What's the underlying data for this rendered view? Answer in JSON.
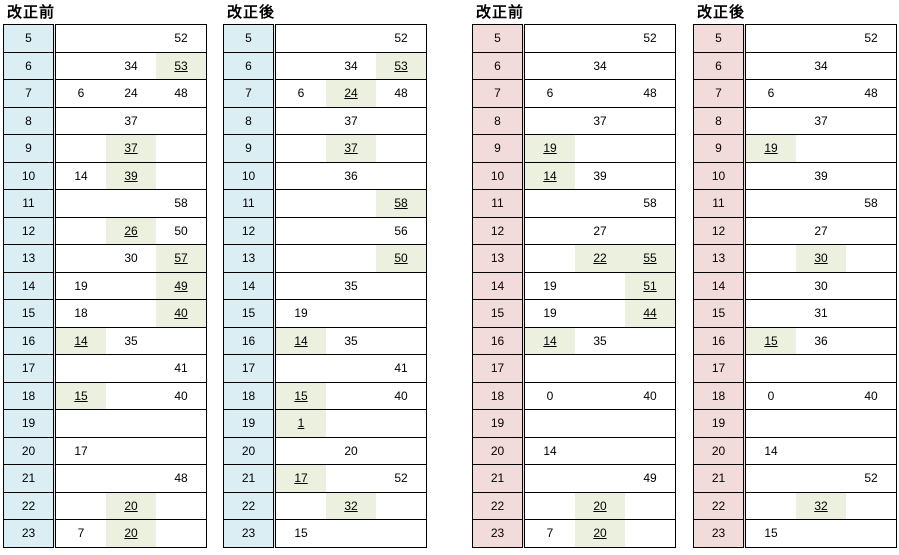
{
  "tables": [
    {
      "title": "改正前",
      "colors": {
        "hour_bg": "#daeef3",
        "highlight": "#ebf1de"
      },
      "rows": [
        {
          "hour": "5",
          "m1": "",
          "m2": "",
          "m3": "52",
          "h1": false,
          "h2": false,
          "h3": false
        },
        {
          "hour": "6",
          "m1": "",
          "m2": "34",
          "m3": "53",
          "h1": false,
          "h2": false,
          "h3": true
        },
        {
          "hour": "7",
          "m1": "6",
          "m2": "24",
          "m3": "48",
          "h1": false,
          "h2": false,
          "h3": false
        },
        {
          "hour": "8",
          "m1": "",
          "m2": "37",
          "m3": "",
          "h1": false,
          "h2": false,
          "h3": false
        },
        {
          "hour": "9",
          "m1": "",
          "m2": "37",
          "m3": "",
          "h1": false,
          "h2": true,
          "h3": false
        },
        {
          "hour": "10",
          "m1": "14",
          "m2": "39",
          "m3": "",
          "h1": false,
          "h2": true,
          "h3": false
        },
        {
          "hour": "11",
          "m1": "",
          "m2": "",
          "m3": "58",
          "h1": false,
          "h2": false,
          "h3": false
        },
        {
          "hour": "12",
          "m1": "",
          "m2": "26",
          "m3": "50",
          "h1": false,
          "h2": true,
          "h3": false
        },
        {
          "hour": "13",
          "m1": "",
          "m2": "30",
          "m3": "57",
          "h1": false,
          "h2": false,
          "h3": true
        },
        {
          "hour": "14",
          "m1": "19",
          "m2": "",
          "m3": "49",
          "h1": false,
          "h2": false,
          "h3": true
        },
        {
          "hour": "15",
          "m1": "18",
          "m2": "",
          "m3": "40",
          "h1": false,
          "h2": false,
          "h3": true
        },
        {
          "hour": "16",
          "m1": "14",
          "m2": "35",
          "m3": "",
          "h1": true,
          "h2": false,
          "h3": false
        },
        {
          "hour": "17",
          "m1": "",
          "m2": "",
          "m3": "41",
          "h1": false,
          "h2": false,
          "h3": false
        },
        {
          "hour": "18",
          "m1": "15",
          "m2": "",
          "m3": "40",
          "h1": true,
          "h2": false,
          "h3": false
        },
        {
          "hour": "19",
          "m1": "",
          "m2": "",
          "m3": "",
          "h1": false,
          "h2": false,
          "h3": false
        },
        {
          "hour": "20",
          "m1": "17",
          "m2": "",
          "m3": "",
          "h1": false,
          "h2": false,
          "h3": false
        },
        {
          "hour": "21",
          "m1": "",
          "m2": "",
          "m3": "48",
          "h1": false,
          "h2": false,
          "h3": false
        },
        {
          "hour": "22",
          "m1": "",
          "m2": "20",
          "m3": "",
          "h1": false,
          "h2": true,
          "h3": false
        },
        {
          "hour": "23",
          "m1": "7",
          "m2": "20",
          "m3": "",
          "h1": false,
          "h2": true,
          "h3": false
        }
      ]
    },
    {
      "title": "改正後",
      "colors": {
        "hour_bg": "#daeef3",
        "highlight": "#ebf1de"
      },
      "rows": [
        {
          "hour": "5",
          "m1": "",
          "m2": "",
          "m3": "52",
          "h1": false,
          "h2": false,
          "h3": false
        },
        {
          "hour": "6",
          "m1": "",
          "m2": "34",
          "m3": "53",
          "h1": false,
          "h2": false,
          "h3": true
        },
        {
          "hour": "7",
          "m1": "6",
          "m2": "24",
          "m3": "48",
          "h1": false,
          "h2": true,
          "h3": false
        },
        {
          "hour": "8",
          "m1": "",
          "m2": "37",
          "m3": "",
          "h1": false,
          "h2": false,
          "h3": false
        },
        {
          "hour": "9",
          "m1": "",
          "m2": "37",
          "m3": "",
          "h1": false,
          "h2": true,
          "h3": false
        },
        {
          "hour": "10",
          "m1": "",
          "m2": "36",
          "m3": "",
          "h1": false,
          "h2": false,
          "h3": false
        },
        {
          "hour": "11",
          "m1": "",
          "m2": "",
          "m3": "58",
          "h1": false,
          "h2": false,
          "h3": true
        },
        {
          "hour": "12",
          "m1": "",
          "m2": "",
          "m3": "56",
          "h1": false,
          "h2": false,
          "h3": false
        },
        {
          "hour": "13",
          "m1": "",
          "m2": "",
          "m3": "50",
          "h1": false,
          "h2": false,
          "h3": true
        },
        {
          "hour": "14",
          "m1": "",
          "m2": "35",
          "m3": "",
          "h1": false,
          "h2": false,
          "h3": false
        },
        {
          "hour": "15",
          "m1": "19",
          "m2": "",
          "m3": "",
          "h1": false,
          "h2": false,
          "h3": false
        },
        {
          "hour": "16",
          "m1": "14",
          "m2": "35",
          "m3": "",
          "h1": true,
          "h2": false,
          "h3": false
        },
        {
          "hour": "17",
          "m1": "",
          "m2": "",
          "m3": "41",
          "h1": false,
          "h2": false,
          "h3": false
        },
        {
          "hour": "18",
          "m1": "15",
          "m2": "",
          "m3": "40",
          "h1": true,
          "h2": false,
          "h3": false
        },
        {
          "hour": "19",
          "m1": "1",
          "m2": "",
          "m3": "",
          "h1": true,
          "h2": false,
          "h3": false
        },
        {
          "hour": "20",
          "m1": "",
          "m2": "20",
          "m3": "",
          "h1": false,
          "h2": false,
          "h3": false
        },
        {
          "hour": "21",
          "m1": "17",
          "m2": "",
          "m3": "52",
          "h1": true,
          "h2": false,
          "h3": false
        },
        {
          "hour": "22",
          "m1": "",
          "m2": "32",
          "m3": "",
          "h1": false,
          "h2": true,
          "h3": false
        },
        {
          "hour": "23",
          "m1": "15",
          "m2": "",
          "m3": "",
          "h1": false,
          "h2": false,
          "h3": false
        }
      ]
    },
    {
      "title": "改正前",
      "colors": {
        "hour_bg": "#f2dcdb",
        "highlight": "#ebf1de"
      },
      "rows": [
        {
          "hour": "5",
          "m1": "",
          "m2": "",
          "m3": "52",
          "h1": false,
          "h2": false,
          "h3": false
        },
        {
          "hour": "6",
          "m1": "",
          "m2": "34",
          "m3": "",
          "h1": false,
          "h2": false,
          "h3": false
        },
        {
          "hour": "7",
          "m1": "6",
          "m2": "",
          "m3": "48",
          "h1": false,
          "h2": false,
          "h3": false
        },
        {
          "hour": "8",
          "m1": "",
          "m2": "37",
          "m3": "",
          "h1": false,
          "h2": false,
          "h3": false
        },
        {
          "hour": "9",
          "m1": "19",
          "m2": "",
          "m3": "",
          "h1": true,
          "h2": false,
          "h3": false
        },
        {
          "hour": "10",
          "m1": "14",
          "m2": "39",
          "m3": "",
          "h1": true,
          "h2": false,
          "h3": false
        },
        {
          "hour": "11",
          "m1": "",
          "m2": "",
          "m3": "58",
          "h1": false,
          "h2": false,
          "h3": false
        },
        {
          "hour": "12",
          "m1": "",
          "m2": "27",
          "m3": "",
          "h1": false,
          "h2": false,
          "h3": false
        },
        {
          "hour": "13",
          "m1": "",
          "m2": "22",
          "m3": "55",
          "h1": false,
          "h2": true,
          "h3": true
        },
        {
          "hour": "14",
          "m1": "19",
          "m2": "",
          "m3": "51",
          "h1": false,
          "h2": false,
          "h3": true
        },
        {
          "hour": "15",
          "m1": "19",
          "m2": "",
          "m3": "44",
          "h1": false,
          "h2": false,
          "h3": true
        },
        {
          "hour": "16",
          "m1": "14",
          "m2": "35",
          "m3": "",
          "h1": true,
          "h2": false,
          "h3": false
        },
        {
          "hour": "17",
          "m1": "",
          "m2": "",
          "m3": "",
          "h1": false,
          "h2": false,
          "h3": false
        },
        {
          "hour": "18",
          "m1": "0",
          "m2": "",
          "m3": "40",
          "h1": false,
          "h2": false,
          "h3": false
        },
        {
          "hour": "19",
          "m1": "",
          "m2": "",
          "m3": "",
          "h1": false,
          "h2": false,
          "h3": false
        },
        {
          "hour": "20",
          "m1": "14",
          "m2": "",
          "m3": "",
          "h1": false,
          "h2": false,
          "h3": false
        },
        {
          "hour": "21",
          "m1": "",
          "m2": "",
          "m3": "49",
          "h1": false,
          "h2": false,
          "h3": false
        },
        {
          "hour": "22",
          "m1": "",
          "m2": "20",
          "m3": "",
          "h1": false,
          "h2": true,
          "h3": false
        },
        {
          "hour": "23",
          "m1": "7",
          "m2": "20",
          "m3": "",
          "h1": false,
          "h2": true,
          "h3": false
        }
      ]
    },
    {
      "title": "改正後",
      "colors": {
        "hour_bg": "#f2dcdb",
        "highlight": "#ebf1de"
      },
      "rows": [
        {
          "hour": "5",
          "m1": "",
          "m2": "",
          "m3": "52",
          "h1": false,
          "h2": false,
          "h3": false
        },
        {
          "hour": "6",
          "m1": "",
          "m2": "34",
          "m3": "",
          "h1": false,
          "h2": false,
          "h3": false
        },
        {
          "hour": "7",
          "m1": "6",
          "m2": "",
          "m3": "48",
          "h1": false,
          "h2": false,
          "h3": false
        },
        {
          "hour": "8",
          "m1": "",
          "m2": "37",
          "m3": "",
          "h1": false,
          "h2": false,
          "h3": false
        },
        {
          "hour": "9",
          "m1": "19",
          "m2": "",
          "m3": "",
          "h1": true,
          "h2": false,
          "h3": false
        },
        {
          "hour": "10",
          "m1": "",
          "m2": "39",
          "m3": "",
          "h1": false,
          "h2": false,
          "h3": false
        },
        {
          "hour": "11",
          "m1": "",
          "m2": "",
          "m3": "58",
          "h1": false,
          "h2": false,
          "h3": false
        },
        {
          "hour": "12",
          "m1": "",
          "m2": "27",
          "m3": "",
          "h1": false,
          "h2": false,
          "h3": false
        },
        {
          "hour": "13",
          "m1": "",
          "m2": "30",
          "m3": "",
          "h1": false,
          "h2": true,
          "h3": false
        },
        {
          "hour": "14",
          "m1": "",
          "m2": "30",
          "m3": "",
          "h1": false,
          "h2": false,
          "h3": false
        },
        {
          "hour": "15",
          "m1": "",
          "m2": "31",
          "m3": "",
          "h1": false,
          "h2": false,
          "h3": false
        },
        {
          "hour": "16",
          "m1": "15",
          "m2": "36",
          "m3": "",
          "h1": true,
          "h2": false,
          "h3": false
        },
        {
          "hour": "17",
          "m1": "",
          "m2": "",
          "m3": "",
          "h1": false,
          "h2": false,
          "h3": false
        },
        {
          "hour": "18",
          "m1": "0",
          "m2": "",
          "m3": "40",
          "h1": false,
          "h2": false,
          "h3": false
        },
        {
          "hour": "19",
          "m1": "",
          "m2": "",
          "m3": "",
          "h1": false,
          "h2": false,
          "h3": false
        },
        {
          "hour": "20",
          "m1": "14",
          "m2": "",
          "m3": "",
          "h1": false,
          "h2": false,
          "h3": false
        },
        {
          "hour": "21",
          "m1": "",
          "m2": "",
          "m3": "52",
          "h1": false,
          "h2": false,
          "h3": false
        },
        {
          "hour": "22",
          "m1": "",
          "m2": "32",
          "m3": "",
          "h1": false,
          "h2": true,
          "h3": false
        },
        {
          "hour": "23",
          "m1": "15",
          "m2": "",
          "m3": "",
          "h1": false,
          "h2": false,
          "h3": false
        }
      ]
    }
  ]
}
